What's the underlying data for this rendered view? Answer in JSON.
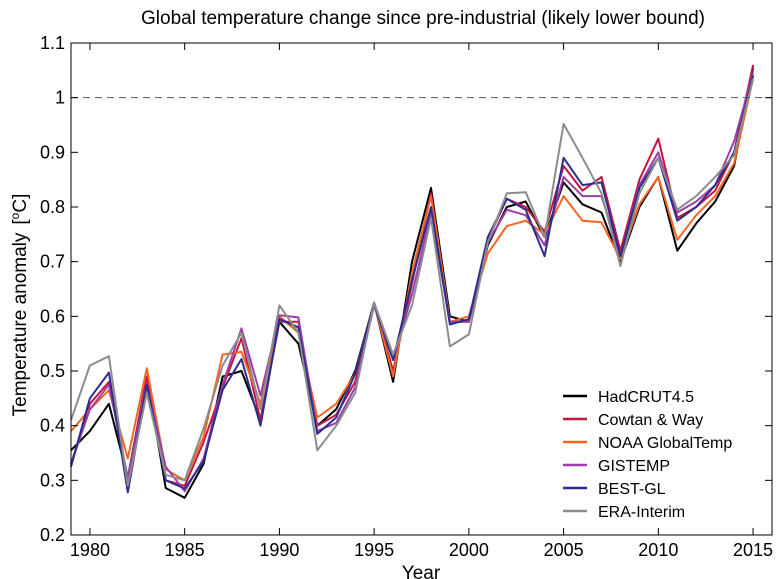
{
  "chart_data": {
    "type": "line",
    "title": "Global temperature change since pre-industrial (likely lower bound)",
    "xlabel": "Year",
    "ylabel": "Temperature anomaly",
    "ylabel_unit_prefix": "[",
    "ylabel_unit_sup": "o",
    "ylabel_unit_suffix": "C]",
    "xlim": [
      1979,
      2016
    ],
    "ylim": [
      0.2,
      1.1
    ],
    "x_ticks": [
      1980,
      1985,
      1990,
      1995,
      2000,
      2005,
      2010,
      2015
    ],
    "y_ticks": [
      "0.2",
      "0.3",
      "0.4",
      "0.5",
      "0.6",
      "0.7",
      "0.8",
      "0.9",
      "1",
      "1.1"
    ],
    "reference_line": {
      "y": 1.0,
      "style": "dashed",
      "color": "#555555"
    },
    "grid": false,
    "legend_position": "bottom-right",
    "x": [
      1979,
      1980,
      1981,
      1982,
      1983,
      1984,
      1985,
      1986,
      1987,
      1988,
      1989,
      1990,
      1991,
      1992,
      1993,
      1994,
      1995,
      1996,
      1997,
      1998,
      1999,
      2000,
      2001,
      2002,
      2003,
      2004,
      2005,
      2006,
      2007,
      2008,
      2009,
      2010,
      2011,
      2012,
      2013,
      2014,
      2015
    ],
    "series": [
      {
        "name": "HadCRUT4.5",
        "color": "#000000",
        "values": [
          0.355,
          0.39,
          0.44,
          0.305,
          0.49,
          0.286,
          0.268,
          0.33,
          0.49,
          0.5,
          0.41,
          0.59,
          0.55,
          0.4,
          0.43,
          0.5,
          0.625,
          0.48,
          0.7,
          0.835,
          0.6,
          0.59,
          0.73,
          0.8,
          0.81,
          0.745,
          0.845,
          0.805,
          0.79,
          0.7,
          0.8,
          0.855,
          0.72,
          0.77,
          0.81,
          0.875,
          1.055
        ]
      },
      {
        "name": "Cowtan & Way",
        "color": "#c4163f",
        "values": [
          0.33,
          0.44,
          0.48,
          0.3,
          0.49,
          0.3,
          0.29,
          0.37,
          0.47,
          0.56,
          0.41,
          0.59,
          0.59,
          0.4,
          0.42,
          0.48,
          0.625,
          0.5,
          0.66,
          0.825,
          0.59,
          0.59,
          0.74,
          0.815,
          0.8,
          0.755,
          0.875,
          0.83,
          0.855,
          0.72,
          0.85,
          0.925,
          0.78,
          0.8,
          0.83,
          0.9,
          1.06
        ]
      },
      {
        "name": "NOAA GlobalTemp",
        "color": "#f26522",
        "values": [
          0.39,
          0.43,
          0.465,
          0.34,
          0.505,
          0.32,
          0.3,
          0.38,
          0.53,
          0.535,
          0.44,
          0.6,
          0.57,
          0.415,
          0.44,
          0.495,
          0.625,
          0.49,
          0.68,
          0.82,
          0.59,
          0.6,
          0.715,
          0.765,
          0.775,
          0.75,
          0.82,
          0.775,
          0.772,
          0.705,
          0.805,
          0.855,
          0.74,
          0.785,
          0.82,
          0.88,
          1.035
        ]
      },
      {
        "name": "GISTEMP",
        "color": "#9b3ea9",
        "values": [
          0.33,
          0.43,
          0.475,
          0.305,
          0.475,
          0.325,
          0.28,
          0.34,
          0.475,
          0.578,
          0.455,
          0.602,
          0.598,
          0.39,
          0.405,
          0.47,
          0.62,
          0.52,
          0.64,
          0.79,
          0.59,
          0.59,
          0.735,
          0.795,
          0.785,
          0.73,
          0.855,
          0.82,
          0.82,
          0.71,
          0.84,
          0.9,
          0.79,
          0.81,
          0.84,
          0.92,
          1.045
        ]
      },
      {
        "name": "BEST-GL",
        "color": "#2b2e8f",
        "values": [
          0.325,
          0.45,
          0.497,
          0.278,
          0.475,
          0.3,
          0.285,
          0.335,
          0.465,
          0.522,
          0.4,
          0.595,
          0.58,
          0.385,
          0.415,
          0.495,
          0.625,
          0.52,
          0.665,
          0.8,
          0.585,
          0.595,
          0.745,
          0.815,
          0.795,
          0.71,
          0.89,
          0.84,
          0.845,
          0.71,
          0.835,
          0.89,
          0.775,
          0.8,
          0.84,
          0.9,
          1.04
        ]
      },
      {
        "name": "ERA-Interim",
        "color": "#8c8c8c",
        "values": [
          0.41,
          0.51,
          0.527,
          0.29,
          0.46,
          0.31,
          0.3,
          0.395,
          0.51,
          0.57,
          0.43,
          0.62,
          0.57,
          0.355,
          0.4,
          0.46,
          0.625,
          0.53,
          0.62,
          0.78,
          0.545,
          0.567,
          0.735,
          0.825,
          0.827,
          0.745,
          0.952,
          0.89,
          0.825,
          0.692,
          0.825,
          0.89,
          0.795,
          0.82,
          0.855,
          0.895,
          1.035
        ]
      }
    ]
  }
}
